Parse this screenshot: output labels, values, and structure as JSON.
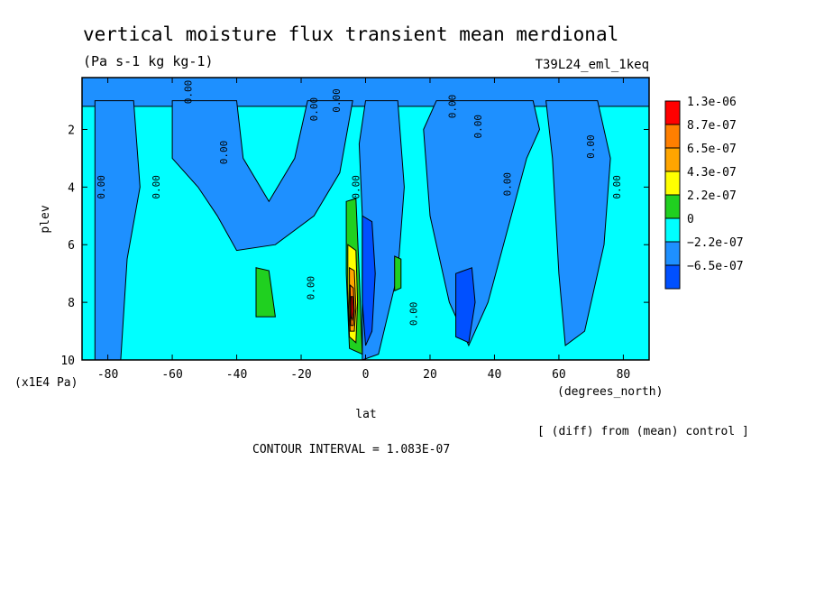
{
  "figure": {
    "title": "vertical moisture flux transient mean merdional",
    "units": "(Pa s-1 kg kg-1)",
    "run_name": "T39L24_eml_1keq",
    "diff_note": "[ (diff) from (mean) control ]",
    "contour_interval": "CONTOUR INTERVAL = 1.083E-07"
  },
  "chart_data": {
    "type": "heatmap",
    "title": "vertical moisture flux transient mean merdional",
    "xlabel": "lat",
    "x_units": "(degrees_north)",
    "ylabel": "plev",
    "y_units": "(x1E4 Pa)",
    "xlim": [
      -88,
      88
    ],
    "ylim": [
      10,
      0.2
    ],
    "x_ticks": [
      -80,
      -60,
      -40,
      -20,
      0,
      20,
      40,
      60,
      80
    ],
    "x_tick_labels": [
      "-80",
      "-60",
      "-40",
      "-20",
      "0",
      "20",
      "40",
      "60",
      "80"
    ],
    "y_ticks": [
      2,
      4,
      6,
      8,
      10
    ],
    "y_tick_labels": [
      "2",
      "4",
      "6",
      "8",
      "10"
    ],
    "legend": {
      "placement": "right",
      "colors": [
        "#ff0000",
        "#ff7f00",
        "#ffa500",
        "#ffff00",
        "#20d020",
        "#00ffff",
        "#1e90ff",
        "#0050ff"
      ],
      "labels": [
        "1.3e-06",
        "8.7e-07",
        "6.5e-07",
        "4.3e-07",
        "2.2e-07",
        "0",
        "−2.2e-07",
        "−6.5e-07"
      ]
    },
    "regions": [
      {
        "level": "neg1",
        "color": "#1e90ff",
        "points": [
          [
            -88,
            0.2
          ],
          [
            88,
            0.2
          ],
          [
            88,
            1.2
          ],
          [
            -88,
            1.2
          ]
        ]
      },
      {
        "level": "neg1",
        "color": "#1e90ff",
        "points": [
          [
            -84,
            1
          ],
          [
            -72,
            1
          ],
          [
            -70,
            4
          ],
          [
            -74,
            6.5
          ],
          [
            -76,
            10
          ],
          [
            -84,
            10
          ]
        ]
      },
      {
        "level": "neg1",
        "color": "#1e90ff",
        "points": [
          [
            -60,
            1
          ],
          [
            -40,
            1
          ],
          [
            -38,
            3
          ],
          [
            -30,
            4.5
          ],
          [
            -22,
            3
          ],
          [
            -18,
            1
          ],
          [
            -4,
            1
          ],
          [
            -8,
            3.5
          ],
          [
            -16,
            5
          ],
          [
            -28,
            6
          ],
          [
            -40,
            6.2
          ],
          [
            -46,
            5
          ],
          [
            -52,
            4
          ],
          [
            -60,
            3
          ]
        ]
      },
      {
        "level": "neg1",
        "color": "#1e90ff",
        "points": [
          [
            0,
            1
          ],
          [
            10,
            1
          ],
          [
            12,
            4
          ],
          [
            10,
            7
          ],
          [
            4,
            9.8
          ],
          [
            -1,
            10
          ],
          [
            -1,
            5
          ],
          [
            -2,
            2.5
          ]
        ]
      },
      {
        "level": "neg1",
        "color": "#1e90ff",
        "points": [
          [
            22,
            1
          ],
          [
            52,
            1
          ],
          [
            54,
            2
          ],
          [
            50,
            3
          ],
          [
            44,
            5.5
          ],
          [
            38,
            8
          ],
          [
            32,
            9.5
          ],
          [
            26,
            8
          ],
          [
            20,
            5
          ],
          [
            18,
            2
          ]
        ]
      },
      {
        "level": "neg1",
        "color": "#1e90ff",
        "points": [
          [
            56,
            1
          ],
          [
            72,
            1
          ],
          [
            76,
            3
          ],
          [
            74,
            6
          ],
          [
            68,
            9
          ],
          [
            62,
            9.5
          ],
          [
            60,
            7
          ],
          [
            58,
            3
          ]
        ]
      },
      {
        "level": "pos1",
        "color": "#20d020",
        "points": [
          [
            -34,
            6.8
          ],
          [
            -30,
            6.9
          ],
          [
            -28,
            8.5
          ],
          [
            -34,
            8.5
          ]
        ]
      },
      {
        "level": "pos1",
        "color": "#20d020",
        "points": [
          [
            -6,
            4.5
          ],
          [
            -3,
            4.4
          ],
          [
            -2,
            7
          ],
          [
            -1,
            9.8
          ],
          [
            -5,
            9.6
          ],
          [
            -6,
            7
          ]
        ]
      },
      {
        "level": "pos1",
        "color": "#20d020",
        "points": [
          [
            9,
            6.4
          ],
          [
            11,
            6.5
          ],
          [
            11,
            7.5
          ],
          [
            9,
            7.6
          ]
        ]
      },
      {
        "level": "pos2",
        "color": "#ffff00",
        "points": [
          [
            -5.5,
            6
          ],
          [
            -3,
            6.2
          ],
          [
            -2.5,
            8
          ],
          [
            -3,
            9.4
          ],
          [
            -5,
            9.2
          ],
          [
            -5.5,
            7.5
          ]
        ]
      },
      {
        "level": "pos3",
        "color": "#ffa500",
        "points": [
          [
            -5,
            6.8
          ],
          [
            -3.5,
            6.9
          ],
          [
            -3,
            8.2
          ],
          [
            -3.5,
            9
          ],
          [
            -4.8,
            9
          ],
          [
            -5,
            8
          ]
        ]
      },
      {
        "level": "pos4",
        "color": "#ff7f00",
        "points": [
          [
            -4.8,
            7.4
          ],
          [
            -3.8,
            7.5
          ],
          [
            -3.5,
            8.3
          ],
          [
            -3.8,
            8.8
          ],
          [
            -4.6,
            8.8
          ]
        ]
      },
      {
        "level": "pos5",
        "color": "#ff0000",
        "points": [
          [
            -4.5,
            7.8
          ],
          [
            -4,
            7.8
          ],
          [
            -3.8,
            8.3
          ],
          [
            -4.1,
            8.6
          ],
          [
            -4.5,
            8.5
          ]
        ]
      },
      {
        "level": "neg2",
        "color": "#0050ff",
        "points": [
          [
            -1,
            5
          ],
          [
            2,
            5.2
          ],
          [
            3,
            7
          ],
          [
            2,
            9
          ],
          [
            0,
            9.5
          ],
          [
            -1,
            8
          ]
        ]
      },
      {
        "level": "neg2",
        "color": "#0050ff",
        "points": [
          [
            28,
            7
          ],
          [
            33,
            6.8
          ],
          [
            34,
            8
          ],
          [
            32,
            9.4
          ],
          [
            28,
            9.2
          ]
        ]
      }
    ],
    "contour_labels": [
      {
        "text": "0.00",
        "x": -81,
        "y": 4
      },
      {
        "text": "0.00",
        "x": -64,
        "y": 4
      },
      {
        "text": "0.00",
        "x": -43,
        "y": 2.8
      },
      {
        "text": "0.00",
        "x": -15,
        "y": 1.3
      },
      {
        "text": "0.00",
        "x": -8,
        "y": 1
      },
      {
        "text": "0.00",
        "x": -54,
        "y": 0.7
      },
      {
        "text": "0.00",
        "x": -16,
        "y": 7.5
      },
      {
        "text": "0.00",
        "x": -2,
        "y": 4
      },
      {
        "text": "0.00",
        "x": 16,
        "y": 8.4
      },
      {
        "text": "0.00",
        "x": 28,
        "y": 1.2
      },
      {
        "text": "0.00",
        "x": 36,
        "y": 1.9
      },
      {
        "text": "0.00",
        "x": 45,
        "y": 3.9
      },
      {
        "text": "0.00",
        "x": 71,
        "y": 2.6
      },
      {
        "text": "0.00",
        "x": 79,
        "y": 4
      }
    ],
    "grid": false
  }
}
